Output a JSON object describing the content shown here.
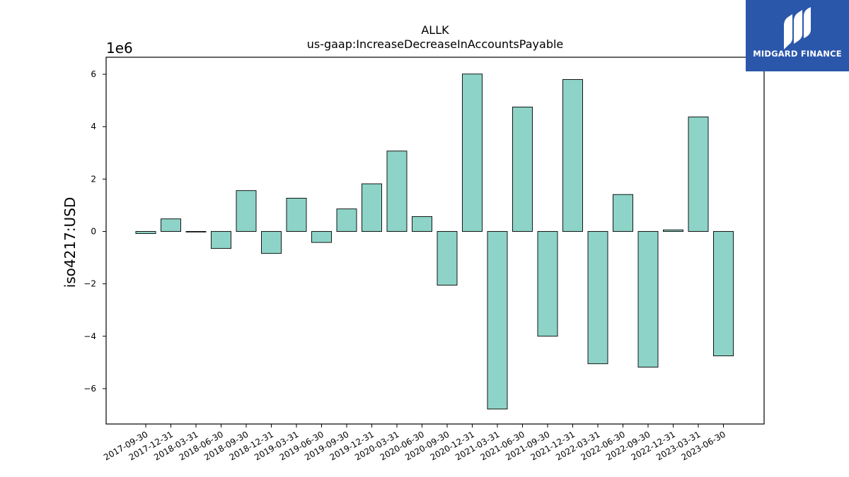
{
  "colors": {
    "bar_fill": "#8dd3c7",
    "bar_edge": "#000000",
    "logo_bg": "#2b57ab"
  },
  "logo": {
    "text": "MIDGARD FINANCE",
    "icon": "midgard-logo-icon"
  },
  "chart_data": {
    "type": "bar",
    "title": "ALLK",
    "subtitle": "us-gaap:IncreaseDecreaseInAccountsPayable",
    "xlabel": "",
    "ylabel": "iso4217:USD",
    "y_offset_label": "1e6",
    "ylim": [
      -7.35,
      6.65
    ],
    "yticks": [
      -6,
      -4,
      -2,
      0,
      2,
      4,
      6
    ],
    "ytick_labels": [
      "−6",
      "−4",
      "−2",
      "0",
      "2",
      "4",
      "6"
    ],
    "grid": false,
    "categories": [
      "2017-09-30",
      "2017-12-31",
      "2018-03-31",
      "2018-06-30",
      "2018-09-30",
      "2018-12-31",
      "2019-03-31",
      "2019-06-30",
      "2019-09-30",
      "2019-12-31",
      "2020-03-31",
      "2020-06-30",
      "2020-09-30",
      "2020-12-31",
      "2021-03-31",
      "2021-06-30",
      "2021-09-30",
      "2021-12-31",
      "2022-03-31",
      "2022-06-30",
      "2022-09-30",
      "2022-12-31",
      "2023-03-31",
      "2023-06-30"
    ],
    "values": [
      -0.08,
      0.48,
      -0.02,
      -0.65,
      1.56,
      -0.84,
      1.27,
      -0.42,
      0.86,
      1.82,
      3.07,
      0.57,
      -2.05,
      6.01,
      -6.78,
      4.75,
      -4.0,
      5.8,
      -5.05,
      1.41,
      -5.18,
      0.06,
      4.37,
      -4.75
    ]
  }
}
